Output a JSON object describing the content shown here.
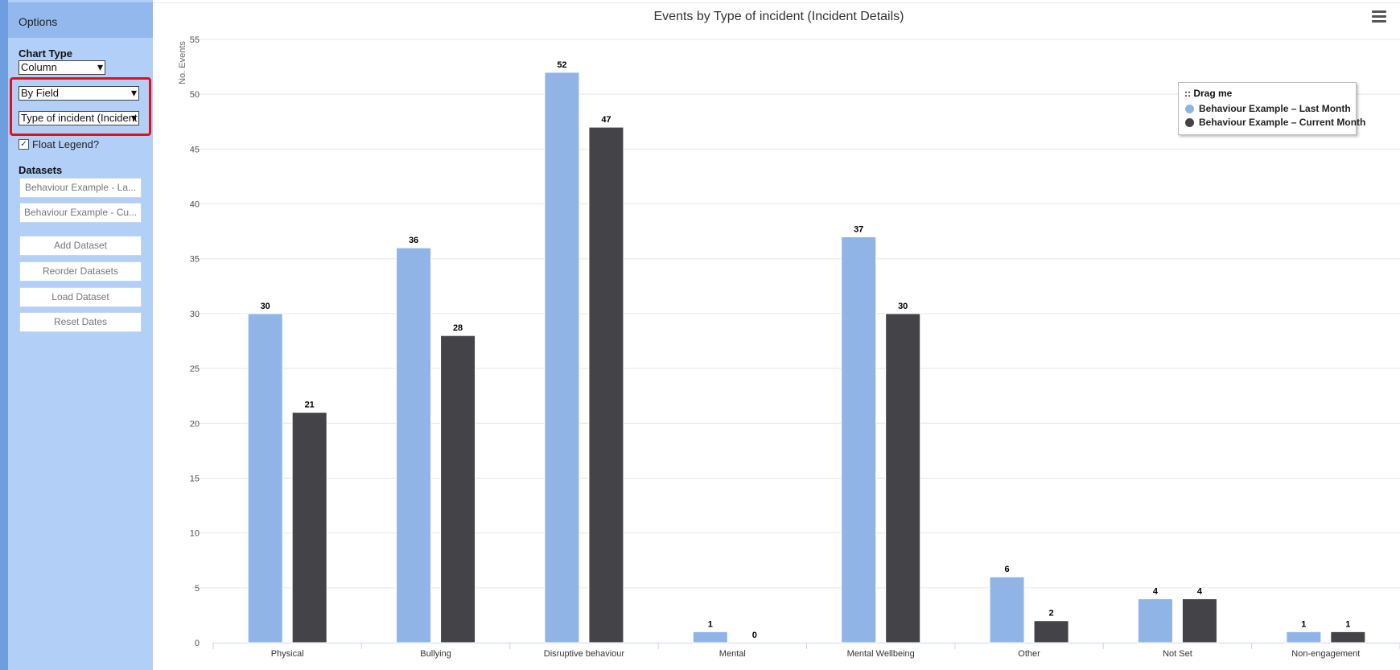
{
  "sidebar": {
    "header": "Options",
    "chart_type_label": "Chart Type",
    "chart_type_value": "Column",
    "group_by_value": "By Field",
    "field_value": "Type of incident (Incident Details)",
    "float_legend_label": "Float Legend?",
    "float_legend_checked": true,
    "datasets_label": "Datasets",
    "datasets": [
      "Behaviour Example - La...",
      "Behaviour Example - Cu..."
    ],
    "buttons": {
      "add": "Add Dataset",
      "reorder": "Reorder Datasets",
      "load": "Load Dataset",
      "reset": "Reset Dates"
    }
  },
  "menu_icon": "hamburger-menu-icon",
  "legend": {
    "title": ":: Drag me",
    "items": [
      "Behaviour Example – Last Month",
      "Behaviour Example – Current Month"
    ]
  },
  "colors": {
    "last_month": "#90b4e6",
    "current_month": "#434348",
    "sidebar": "#b2d0f7",
    "highlight": "#e3101c"
  },
  "chart_data": {
    "type": "bar",
    "title": "Events by Type of incident (Incident Details)",
    "ylabel": "No. Events",
    "xlabel": "",
    "ylim": [
      0,
      55
    ],
    "yticks": [
      0,
      5,
      10,
      15,
      20,
      25,
      30,
      35,
      40,
      45,
      50,
      55
    ],
    "categories": [
      "Physical",
      "Bullying",
      "Disruptive behaviour",
      "Mental",
      "Mental Wellbeing",
      "Other",
      "Not Set",
      "Non-engagement"
    ],
    "series": [
      {
        "name": "Behaviour Example – Last Month",
        "values": [
          30,
          36,
          52,
          1,
          37,
          6,
          4,
          1
        ]
      },
      {
        "name": "Behaviour Example – Current Month",
        "values": [
          21,
          28,
          47,
          0,
          30,
          2,
          4,
          1
        ]
      }
    ],
    "legend_position": "top-right",
    "grid": true
  }
}
